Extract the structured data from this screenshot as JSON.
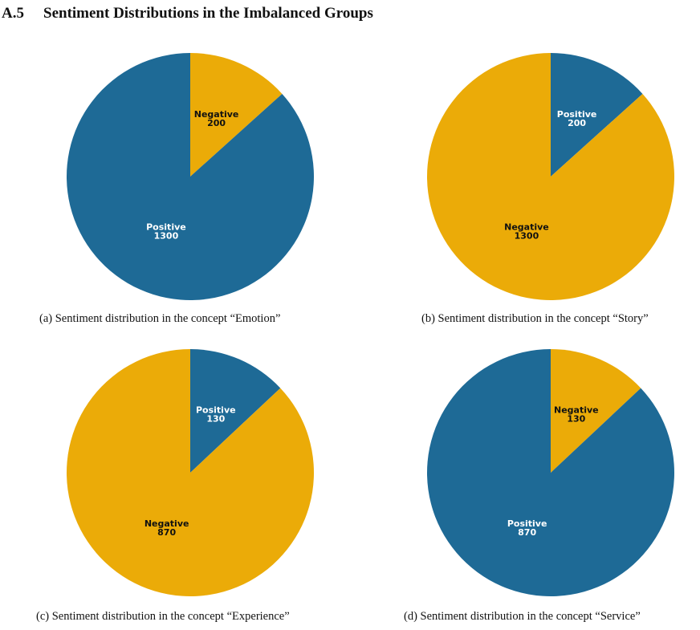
{
  "section": {
    "number": "A.5",
    "title": "Sentiment Distributions in the Imbalanced Groups"
  },
  "colors": {
    "positive": "#1e6a96",
    "negative": "#ebab08",
    "label_on_positive": "#ffffff",
    "label_on_negative": "#111111"
  },
  "chart_data": [
    {
      "type": "pie",
      "caption": "(a) Sentiment distribution in the concept “Emotion”",
      "slices": [
        {
          "label": "Negative",
          "value": 200,
          "color": "#ebab08"
        },
        {
          "label": "Positive",
          "value": 1300,
          "color": "#1e6a96"
        }
      ]
    },
    {
      "type": "pie",
      "caption": "(b) Sentiment distribution in the concept “Story”",
      "slices": [
        {
          "label": "Positive",
          "value": 200,
          "color": "#1e6a96"
        },
        {
          "label": "Negative",
          "value": 1300,
          "color": "#ebab08"
        }
      ]
    },
    {
      "type": "pie",
      "caption": "(c) Sentiment distribution in the concept “Experience”",
      "slices": [
        {
          "label": "Positive",
          "value": 130,
          "color": "#1e6a96"
        },
        {
          "label": "Negative",
          "value": 870,
          "color": "#ebab08"
        }
      ]
    },
    {
      "type": "pie",
      "caption": "(d) Sentiment distribution in the concept “Service”",
      "slices": [
        {
          "label": "Negative",
          "value": 130,
          "color": "#ebab08"
        },
        {
          "label": "Positive",
          "value": 870,
          "color": "#1e6a96"
        }
      ]
    }
  ]
}
